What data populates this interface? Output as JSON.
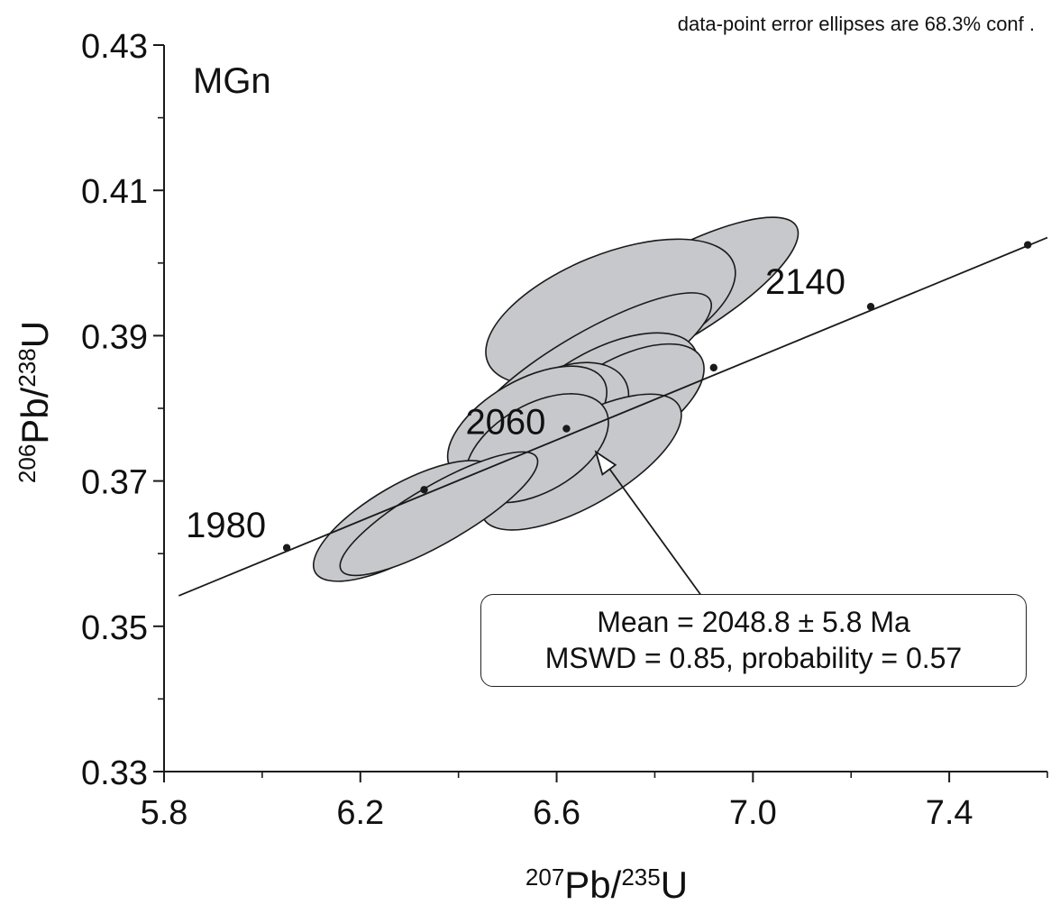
{
  "chart_data": {
    "type": "scatter",
    "subtype": "concordia-diagram",
    "sample_label": "MGn",
    "note": "data-point error ellipses are 68.3% conf .",
    "xlabel": {
      "sup1": "207",
      "main1": "Pb/",
      "sup2": "235",
      "main2": "U"
    },
    "ylabel": {
      "sup1": "206",
      "main1": "Pb/",
      "sup2": "238",
      "main2": "U"
    },
    "xlim": [
      5.8,
      7.6
    ],
    "ylim": [
      0.33,
      0.43
    ],
    "x_ticks": [
      "5.8",
      "6.2",
      "6.6",
      "7.0",
      "7.4"
    ],
    "y_ticks": [
      "0.33",
      "0.35",
      "0.37",
      "0.39",
      "0.41",
      "0.43"
    ],
    "concordia_ages": [
      {
        "age": "1980",
        "x": 6.05,
        "y": 0.3608,
        "label": true
      },
      {
        "age": "2020",
        "x": 6.33,
        "y": 0.3688,
        "label": false
      },
      {
        "age": "2060",
        "x": 6.62,
        "y": 0.3772,
        "label": true
      },
      {
        "age": "2100",
        "x": 6.92,
        "y": 0.3856,
        "label": false
      },
      {
        "age": "2140",
        "x": 7.24,
        "y": 0.394,
        "label": true
      },
      {
        "age": "2180",
        "x": 7.56,
        "y": 0.4025,
        "label": false
      }
    ],
    "concordia_line": {
      "x_start": 5.83,
      "y_start": 0.3542,
      "x_end": 7.6,
      "y_end": 0.4035
    },
    "ellipses": [
      {
        "cx": 6.82,
        "cy": 0.3946,
        "rx": 0.31,
        "ry": 0.006,
        "angle_deg": -30
      },
      {
        "cx": 6.71,
        "cy": 0.3932,
        "rx": 0.27,
        "ry": 0.008,
        "angle_deg": -22
      },
      {
        "cx": 6.67,
        "cy": 0.3855,
        "rx": 0.28,
        "ry": 0.005,
        "angle_deg": -30
      },
      {
        "cx": 6.69,
        "cy": 0.3808,
        "rx": 0.22,
        "ry": 0.007,
        "angle_deg": -30
      },
      {
        "cx": 6.73,
        "cy": 0.3806,
        "rx": 0.19,
        "ry": 0.006,
        "angle_deg": -30
      },
      {
        "cx": 6.6,
        "cy": 0.3785,
        "rx": 0.16,
        "ry": 0.0065,
        "angle_deg": -30
      },
      {
        "cx": 6.54,
        "cy": 0.3778,
        "rx": 0.18,
        "ry": 0.006,
        "angle_deg": -30
      },
      {
        "cx": 6.65,
        "cy": 0.3726,
        "rx": 0.23,
        "ry": 0.006,
        "angle_deg": -30
      },
      {
        "cx": 6.56,
        "cy": 0.3745,
        "rx": 0.16,
        "ry": 0.006,
        "angle_deg": -30
      },
      {
        "cx": 6.29,
        "cy": 0.3645,
        "rx": 0.21,
        "ry": 0.005,
        "angle_deg": -30
      },
      {
        "cx": 6.36,
        "cy": 0.3655,
        "rx": 0.23,
        "ry": 0.004,
        "angle_deg": -30
      }
    ],
    "arrow": {
      "from_x": 6.91,
      "from_y": 0.3528,
      "to_x": 6.68,
      "to_y": 0.374
    },
    "result": {
      "line1": "Mean = 2048.8 ± 5.8 Ma",
      "line2": "MSWD = 0.85, probability = 0.57"
    },
    "colors": {
      "ellipse_fill": "#c6c8cb",
      "ellipse_stroke": "#1a1a1a",
      "axis": "#1a1a1a"
    }
  }
}
